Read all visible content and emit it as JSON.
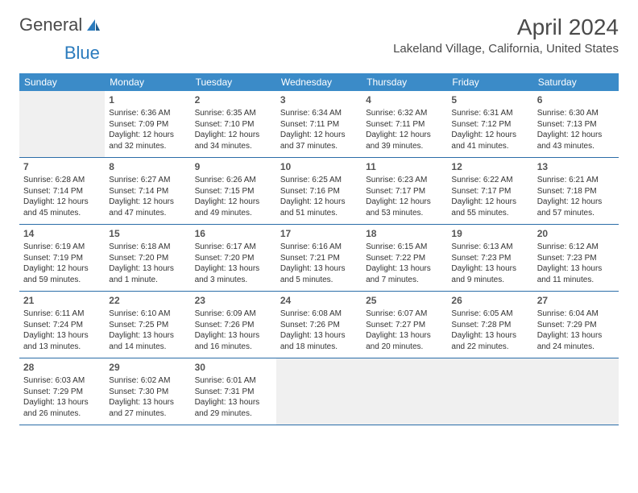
{
  "logo": {
    "text_a": "General",
    "text_b": "Blue"
  },
  "title": "April 2024",
  "location": "Lakeland Village, California, United States",
  "header_bg": "#3b8bc8",
  "header_fg": "#ffffff",
  "row_border": "#2b6da8",
  "empty_bg": "#f0f0f0",
  "weekdays": [
    "Sunday",
    "Monday",
    "Tuesday",
    "Wednesday",
    "Thursday",
    "Friday",
    "Saturday"
  ],
  "weeks": [
    [
      null,
      {
        "d": "1",
        "sr": "6:36 AM",
        "ss": "7:09 PM",
        "dl": "12 hours and 32 minutes."
      },
      {
        "d": "2",
        "sr": "6:35 AM",
        "ss": "7:10 PM",
        "dl": "12 hours and 34 minutes."
      },
      {
        "d": "3",
        "sr": "6:34 AM",
        "ss": "7:11 PM",
        "dl": "12 hours and 37 minutes."
      },
      {
        "d": "4",
        "sr": "6:32 AM",
        "ss": "7:11 PM",
        "dl": "12 hours and 39 minutes."
      },
      {
        "d": "5",
        "sr": "6:31 AM",
        "ss": "7:12 PM",
        "dl": "12 hours and 41 minutes."
      },
      {
        "d": "6",
        "sr": "6:30 AM",
        "ss": "7:13 PM",
        "dl": "12 hours and 43 minutes."
      }
    ],
    [
      {
        "d": "7",
        "sr": "6:28 AM",
        "ss": "7:14 PM",
        "dl": "12 hours and 45 minutes."
      },
      {
        "d": "8",
        "sr": "6:27 AM",
        "ss": "7:14 PM",
        "dl": "12 hours and 47 minutes."
      },
      {
        "d": "9",
        "sr": "6:26 AM",
        "ss": "7:15 PM",
        "dl": "12 hours and 49 minutes."
      },
      {
        "d": "10",
        "sr": "6:25 AM",
        "ss": "7:16 PM",
        "dl": "12 hours and 51 minutes."
      },
      {
        "d": "11",
        "sr": "6:23 AM",
        "ss": "7:17 PM",
        "dl": "12 hours and 53 minutes."
      },
      {
        "d": "12",
        "sr": "6:22 AM",
        "ss": "7:17 PM",
        "dl": "12 hours and 55 minutes."
      },
      {
        "d": "13",
        "sr": "6:21 AM",
        "ss": "7:18 PM",
        "dl": "12 hours and 57 minutes."
      }
    ],
    [
      {
        "d": "14",
        "sr": "6:19 AM",
        "ss": "7:19 PM",
        "dl": "12 hours and 59 minutes."
      },
      {
        "d": "15",
        "sr": "6:18 AM",
        "ss": "7:20 PM",
        "dl": "13 hours and 1 minute."
      },
      {
        "d": "16",
        "sr": "6:17 AM",
        "ss": "7:20 PM",
        "dl": "13 hours and 3 minutes."
      },
      {
        "d": "17",
        "sr": "6:16 AM",
        "ss": "7:21 PM",
        "dl": "13 hours and 5 minutes."
      },
      {
        "d": "18",
        "sr": "6:15 AM",
        "ss": "7:22 PM",
        "dl": "13 hours and 7 minutes."
      },
      {
        "d": "19",
        "sr": "6:13 AM",
        "ss": "7:23 PM",
        "dl": "13 hours and 9 minutes."
      },
      {
        "d": "20",
        "sr": "6:12 AM",
        "ss": "7:23 PM",
        "dl": "13 hours and 11 minutes."
      }
    ],
    [
      {
        "d": "21",
        "sr": "6:11 AM",
        "ss": "7:24 PM",
        "dl": "13 hours and 13 minutes."
      },
      {
        "d": "22",
        "sr": "6:10 AM",
        "ss": "7:25 PM",
        "dl": "13 hours and 14 minutes."
      },
      {
        "d": "23",
        "sr": "6:09 AM",
        "ss": "7:26 PM",
        "dl": "13 hours and 16 minutes."
      },
      {
        "d": "24",
        "sr": "6:08 AM",
        "ss": "7:26 PM",
        "dl": "13 hours and 18 minutes."
      },
      {
        "d": "25",
        "sr": "6:07 AM",
        "ss": "7:27 PM",
        "dl": "13 hours and 20 minutes."
      },
      {
        "d": "26",
        "sr": "6:05 AM",
        "ss": "7:28 PM",
        "dl": "13 hours and 22 minutes."
      },
      {
        "d": "27",
        "sr": "6:04 AM",
        "ss": "7:29 PM",
        "dl": "13 hours and 24 minutes."
      }
    ],
    [
      {
        "d": "28",
        "sr": "6:03 AM",
        "ss": "7:29 PM",
        "dl": "13 hours and 26 minutes."
      },
      {
        "d": "29",
        "sr": "6:02 AM",
        "ss": "7:30 PM",
        "dl": "13 hours and 27 minutes."
      },
      {
        "d": "30",
        "sr": "6:01 AM",
        "ss": "7:31 PM",
        "dl": "13 hours and 29 minutes."
      },
      null,
      null,
      null,
      null
    ]
  ],
  "labels": {
    "sunrise": "Sunrise: ",
    "sunset": "Sunset: ",
    "daylight": "Daylight: "
  }
}
